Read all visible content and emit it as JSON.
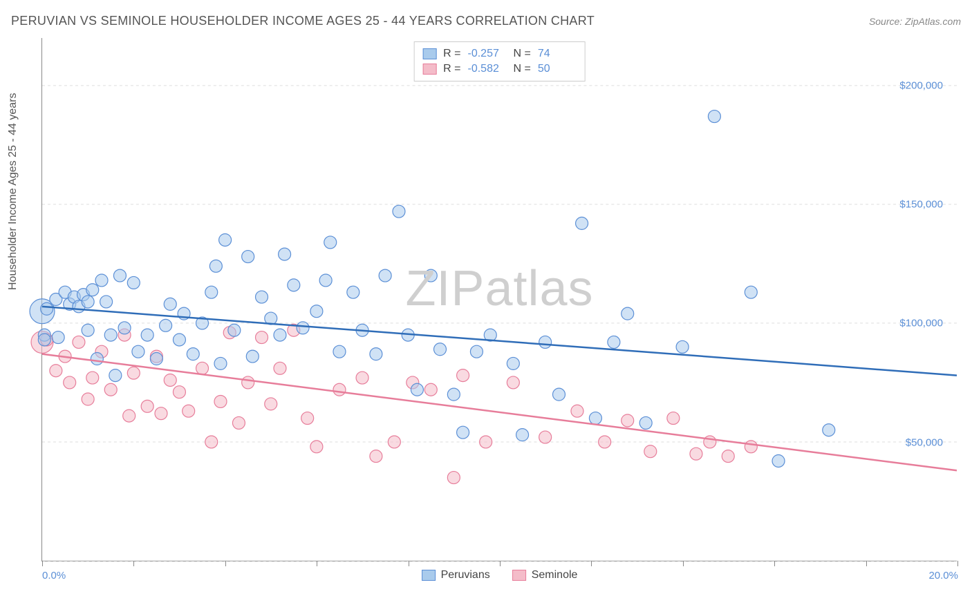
{
  "header": {
    "title": "PERUVIAN VS SEMINOLE HOUSEHOLDER INCOME AGES 25 - 44 YEARS CORRELATION CHART",
    "source": "Source: ZipAtlas.com"
  },
  "chart": {
    "type": "scatter",
    "ylabel": "Householder Income Ages 25 - 44 years",
    "xlim": [
      0,
      20
    ],
    "ylim": [
      0,
      220000
    ],
    "x_tick_positions": [
      0,
      2,
      4,
      6,
      8,
      10,
      12,
      14,
      16,
      18,
      20
    ],
    "x_tick_labels": {
      "left": "0.0%",
      "right": "20.0%"
    },
    "y_grid_values": [
      0,
      50000,
      100000,
      150000,
      200000
    ],
    "y_tick_labels": [
      "$50,000",
      "$100,000",
      "$150,000",
      "$200,000"
    ],
    "y_tick_values": [
      50000,
      100000,
      150000,
      200000
    ],
    "background_color": "#ffffff",
    "grid_color": "#dddddd",
    "axis_color": "#888888",
    "label_color": "#555555",
    "tick_label_color": "#5b8fd6",
    "watermark": "ZIPatlas",
    "series": [
      {
        "name": "Peruvians",
        "fill": "#a9cbec",
        "stroke": "#5b8fd6",
        "fill_opacity": 0.55,
        "marker_radius": 9,
        "trend": {
          "x1": 0,
          "y1": 107000,
          "x2": 20,
          "y2": 78000,
          "color": "#2f6db8",
          "width": 2.5
        },
        "points": [
          [
            0.05,
            95000
          ],
          [
            0.05,
            93000
          ],
          [
            0.1,
            106000
          ],
          [
            0.3,
            110000
          ],
          [
            0.35,
            94000
          ],
          [
            0.5,
            113000
          ],
          [
            0.6,
            108000
          ],
          [
            0.7,
            111000
          ],
          [
            0.8,
            107000
          ],
          [
            0.9,
            112000
          ],
          [
            1.0,
            97000
          ],
          [
            1.0,
            109000
          ],
          [
            1.1,
            114000
          ],
          [
            1.2,
            85000
          ],
          [
            1.3,
            118000
          ],
          [
            1.4,
            109000
          ],
          [
            1.5,
            95000
          ],
          [
            1.6,
            78000
          ],
          [
            1.7,
            120000
          ],
          [
            1.8,
            98000
          ],
          [
            2.0,
            117000
          ],
          [
            2.1,
            88000
          ],
          [
            2.3,
            95000
          ],
          [
            2.5,
            85000
          ],
          [
            2.7,
            99000
          ],
          [
            2.8,
            108000
          ],
          [
            3.0,
            93000
          ],
          [
            3.1,
            104000
          ],
          [
            3.3,
            87000
          ],
          [
            3.5,
            100000
          ],
          [
            3.7,
            113000
          ],
          [
            3.8,
            124000
          ],
          [
            3.9,
            83000
          ],
          [
            4.0,
            135000
          ],
          [
            4.2,
            97000
          ],
          [
            4.5,
            128000
          ],
          [
            4.6,
            86000
          ],
          [
            4.8,
            111000
          ],
          [
            5.0,
            102000
          ],
          [
            5.2,
            95000
          ],
          [
            5.3,
            129000
          ],
          [
            5.5,
            116000
          ],
          [
            5.7,
            98000
          ],
          [
            6.0,
            105000
          ],
          [
            6.2,
            118000
          ],
          [
            6.3,
            134000
          ],
          [
            6.5,
            88000
          ],
          [
            6.8,
            113000
          ],
          [
            7.0,
            97000
          ],
          [
            7.3,
            87000
          ],
          [
            7.5,
            120000
          ],
          [
            7.8,
            147000
          ],
          [
            8.0,
            95000
          ],
          [
            8.2,
            72000
          ],
          [
            8.5,
            120000
          ],
          [
            8.7,
            89000
          ],
          [
            9.0,
            70000
          ],
          [
            9.2,
            54000
          ],
          [
            9.5,
            88000
          ],
          [
            9.8,
            95000
          ],
          [
            10.3,
            83000
          ],
          [
            10.5,
            53000
          ],
          [
            11.0,
            92000
          ],
          [
            11.3,
            70000
          ],
          [
            11.8,
            142000
          ],
          [
            12.1,
            60000
          ],
          [
            12.5,
            92000
          ],
          [
            12.8,
            104000
          ],
          [
            13.2,
            58000
          ],
          [
            14.0,
            90000
          ],
          [
            14.7,
            187000
          ],
          [
            15.5,
            113000
          ],
          [
            16.1,
            42000
          ],
          [
            17.2,
            55000
          ]
        ],
        "big_point": {
          "x": 0.0,
          "y": 105000,
          "r": 18
        }
      },
      {
        "name": "Seminole",
        "fill": "#f4bcc9",
        "stroke": "#e77d9a",
        "fill_opacity": 0.55,
        "marker_radius": 9,
        "trend": {
          "x1": 0,
          "y1": 87000,
          "x2": 20,
          "y2": 38000,
          "color": "#e77d9a",
          "width": 2.5
        },
        "points": [
          [
            0.1,
            93000
          ],
          [
            0.3,
            80000
          ],
          [
            0.5,
            86000
          ],
          [
            0.6,
            75000
          ],
          [
            0.8,
            92000
          ],
          [
            1.0,
            68000
          ],
          [
            1.1,
            77000
          ],
          [
            1.3,
            88000
          ],
          [
            1.5,
            72000
          ],
          [
            1.8,
            95000
          ],
          [
            1.9,
            61000
          ],
          [
            2.0,
            79000
          ],
          [
            2.3,
            65000
          ],
          [
            2.5,
            86000
          ],
          [
            2.6,
            62000
          ],
          [
            2.8,
            76000
          ],
          [
            3.0,
            71000
          ],
          [
            3.2,
            63000
          ],
          [
            3.5,
            81000
          ],
          [
            3.7,
            50000
          ],
          [
            3.9,
            67000
          ],
          [
            4.1,
            96000
          ],
          [
            4.3,
            58000
          ],
          [
            4.5,
            75000
          ],
          [
            4.8,
            94000
          ],
          [
            5.0,
            66000
          ],
          [
            5.2,
            81000
          ],
          [
            5.5,
            97000
          ],
          [
            5.8,
            60000
          ],
          [
            6.0,
            48000
          ],
          [
            6.5,
            72000
          ],
          [
            7.0,
            77000
          ],
          [
            7.3,
            44000
          ],
          [
            7.7,
            50000
          ],
          [
            8.1,
            75000
          ],
          [
            8.5,
            72000
          ],
          [
            9.0,
            35000
          ],
          [
            9.2,
            78000
          ],
          [
            9.7,
            50000
          ],
          [
            10.3,
            75000
          ],
          [
            11.0,
            52000
          ],
          [
            11.7,
            63000
          ],
          [
            12.3,
            50000
          ],
          [
            12.8,
            59000
          ],
          [
            13.3,
            46000
          ],
          [
            13.8,
            60000
          ],
          [
            14.3,
            45000
          ],
          [
            14.6,
            50000
          ],
          [
            15.0,
            44000
          ],
          [
            15.5,
            48000
          ]
        ],
        "big_point": {
          "x": 0.0,
          "y": 92000,
          "r": 16
        }
      }
    ],
    "legend_top": [
      {
        "swatch_fill": "#a9cbec",
        "swatch_stroke": "#5b8fd6",
        "r": "-0.257",
        "n": "74"
      },
      {
        "swatch_fill": "#f4bcc9",
        "swatch_stroke": "#e77d9a",
        "r": "-0.582",
        "n": "50"
      }
    ],
    "legend_bottom": [
      {
        "label": "Peruvians",
        "fill": "#a9cbec",
        "stroke": "#5b8fd6"
      },
      {
        "label": "Seminole",
        "fill": "#f4bcc9",
        "stroke": "#e77d9a"
      }
    ]
  }
}
